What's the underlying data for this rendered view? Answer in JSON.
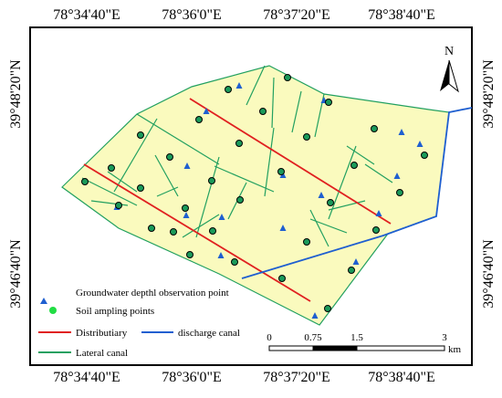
{
  "map": {
    "top_labels": [
      "78°34'40\"E",
      "78°36'0\"E",
      "78°37'20\"E",
      "78°38'40\"E"
    ],
    "bottom_labels": [
      "78°34'40\"E",
      "78°36'0\"E",
      "78°37'20\"E",
      "78°38'40\"E"
    ],
    "left_labels": [
      "39°48'20\"N",
      "39°46'40\"N"
    ],
    "right_labels": [
      "39°48'20\"N",
      "39°46'40\"N"
    ],
    "north": "N",
    "legend": [
      "Groundwater depthl observation point",
      "Soil ampling points",
      "Distributiary",
      "discharge canal",
      "Lateral canal"
    ],
    "scale": {
      "labels": [
        "0",
        "0.75",
        "1.5",
        "3"
      ],
      "unit": "km"
    }
  }
}
